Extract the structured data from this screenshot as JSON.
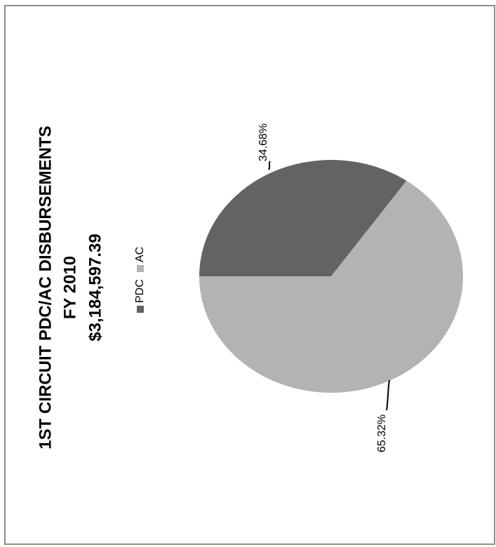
{
  "chart_data": {
    "type": "pie",
    "title_lines": [
      "1ST CIRCUIT PDC/AC DISBURSEMENTS",
      "FY 2010",
      "$3,184,597.39"
    ],
    "legend_placement": "left",
    "categories": [
      "PDC",
      "AC"
    ],
    "values": [
      34.68,
      65.32
    ],
    "labels": [
      "34.68%",
      "65.32%"
    ],
    "colors": [
      "#636363",
      "#b3b3b3"
    ]
  }
}
